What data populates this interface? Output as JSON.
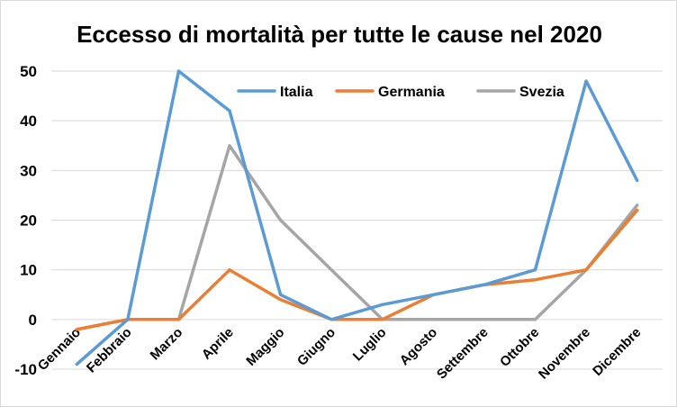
{
  "chart_data": {
    "type": "line",
    "title": "Eccesso di mortalità per tutte le cause nel 2020",
    "xlabel": "",
    "ylabel": "",
    "ylim": [
      -10,
      50
    ],
    "yticks": [
      -10,
      0,
      10,
      20,
      30,
      40,
      50
    ],
    "grid": true,
    "legend_position": "top-right",
    "categories": [
      "Gennaio",
      "Febbraio",
      "Marzo",
      "Aprile",
      "Maggio",
      "Giugno",
      "Luglio",
      "Agosto",
      "Settembre",
      "Ottobre",
      "Novembre",
      "Dicembre"
    ],
    "series": [
      {
        "name": "Italia",
        "color": "#5b9bd5",
        "values": [
          -9,
          0,
          50,
          42,
          5,
          0,
          3,
          5,
          7,
          10,
          48,
          28
        ]
      },
      {
        "name": "Germania",
        "color": "#ed7d31",
        "values": [
          -2,
          0,
          0,
          10,
          4,
          0,
          0,
          5,
          7,
          8,
          10,
          22
        ]
      },
      {
        "name": "Svezia",
        "color": "#a5a5a5",
        "values": [
          -2,
          0,
          0,
          35,
          20,
          10,
          0,
          0,
          0,
          0,
          10,
          23
        ]
      }
    ]
  }
}
